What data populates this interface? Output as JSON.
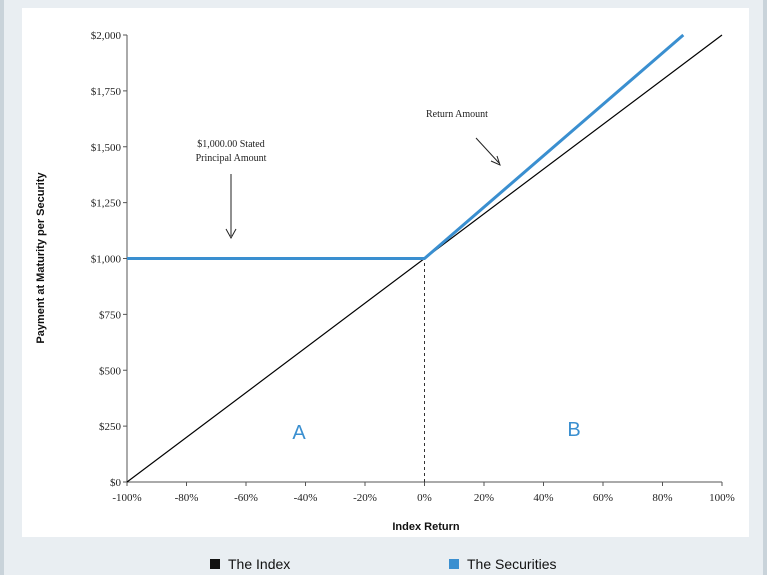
{
  "chart_data": {
    "type": "line",
    "xlabel": "Index Return",
    "ylabel": "Payment at Maturity per Security",
    "xlim": [
      -100,
      100
    ],
    "ylim": [
      0,
      2000
    ],
    "x_ticks": [
      "-100%",
      "-80%",
      "-60%",
      "-40%",
      "-20%",
      "0%",
      "20%",
      "40%",
      "60%",
      "80%",
      "100%"
    ],
    "y_ticks": [
      "$0",
      "$250",
      "$500",
      "$750",
      "$1,000",
      "$1,250",
      "$1,500",
      "$1,750",
      "$2,000"
    ],
    "series": [
      {
        "name": "The Index",
        "color": "#000000",
        "x": [
          -100,
          100
        ],
        "y": [
          0,
          2000
        ]
      },
      {
        "name": "The Securities",
        "color": "#3a8fd0",
        "x": [
          -100,
          0,
          87
        ],
        "y": [
          1000,
          1000,
          2000
        ]
      }
    ],
    "reference_line": {
      "x": 0,
      "y_from": 0,
      "y_to": 1000,
      "style": "dashed"
    },
    "annotations": [
      {
        "line1": "$1,000.00 Stated",
        "line2": "Principal Amount"
      },
      {
        "line1": "Return Amount",
        "line2": ""
      }
    ],
    "regions": [
      "A",
      "B"
    ],
    "grid": false,
    "legend_placement": "bottom"
  },
  "legend": [
    {
      "label": "The Index",
      "color": "#111111"
    },
    {
      "label": "The Securities",
      "color": "#3a8fd0"
    }
  ]
}
